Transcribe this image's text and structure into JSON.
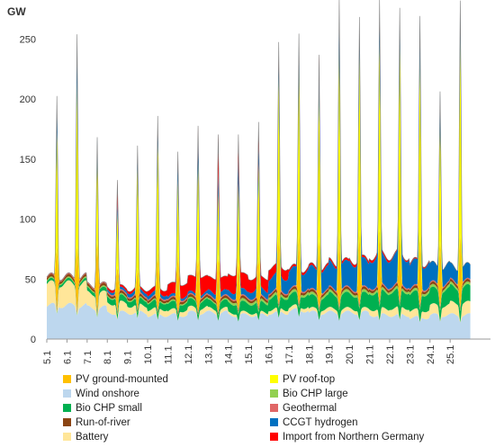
{
  "chart_data": {
    "type": "area",
    "stacked": true,
    "ylabel": "GW",
    "ylim": [
      0,
      260
    ],
    "yticks": [
      0,
      50,
      100,
      150,
      200,
      250
    ],
    "xlim": [
      "5.1",
      "26.1"
    ],
    "x_ticks": [
      "5.1",
      "6.1",
      "7.1",
      "8.1",
      "9.1",
      "10.1",
      "11.1",
      "12.1",
      "13.1",
      "14.1",
      "15.1",
      "16.1",
      "17.1",
      "18.1",
      "19.1",
      "20.1",
      "21.1",
      "22.1",
      "23.1",
      "24.1",
      "25.1"
    ],
    "days": [
      "5.1",
      "6.1",
      "7.1",
      "8.1",
      "9.1",
      "10.1",
      "11.1",
      "12.1",
      "13.1",
      "14.1",
      "15.1",
      "16.1",
      "17.1",
      "18.1",
      "19.1",
      "20.1",
      "21.1",
      "22.1",
      "23.1",
      "24.1",
      "25.1"
    ],
    "series": [
      {
        "name": "PV ground-mounted",
        "color": "#FFC000",
        "daily_peak": [
          52,
          55,
          60,
          38,
          35,
          50,
          50,
          45,
          48,
          40,
          45,
          60,
          60,
          60,
          62,
          62,
          62,
          62,
          60,
          55,
          62
        ]
      },
      {
        "name": "Wind onshore",
        "color": "#BDD7EE",
        "daily_base": [
          28,
          28,
          26,
          22,
          22,
          20,
          20,
          22,
          22,
          20,
          20,
          22,
          24,
          22,
          22,
          22,
          20,
          20,
          18,
          20,
          20
        ]
      },
      {
        "name": "Bio CHP small",
        "color": "#00B050",
        "daily_base": [
          2,
          2,
          3,
          5,
          5,
          6,
          6,
          6,
          6,
          8,
          8,
          10,
          10,
          10,
          12,
          12,
          14,
          14,
          14,
          13,
          13
        ]
      },
      {
        "name": "Run-of-river",
        "color": "#8B4513",
        "daily_base": [
          2,
          2,
          2,
          2,
          2,
          2,
          2,
          2,
          2,
          2,
          2,
          2,
          2,
          2,
          2,
          2,
          2,
          2,
          2,
          2,
          2
        ]
      },
      {
        "name": "Battery",
        "color": "#FFE699",
        "daily_base": [
          18,
          18,
          12,
          8,
          6,
          5,
          4,
          4,
          3,
          2,
          2,
          3,
          3,
          3,
          3,
          3,
          5,
          6,
          6,
          8,
          10
        ]
      },
      {
        "name": "PV roof-top",
        "color": "#FFFF00",
        "daily_peak": [
          95,
          135,
          70,
          45,
          85,
          90,
          60,
          80,
          55,
          65,
          75,
          130,
          140,
          125,
          155,
          150,
          155,
          155,
          150,
          100,
          165
        ]
      },
      {
        "name": "Bio CHP large",
        "color": "#92D050",
        "daily_base": [
          1,
          1,
          1,
          1,
          1,
          1,
          1,
          1,
          1,
          2,
          2,
          2,
          2,
          2,
          2,
          2,
          2,
          2,
          2,
          2,
          2
        ]
      },
      {
        "name": "Geothermal",
        "color": "#E06666",
        "daily_base": [
          1,
          1,
          1,
          1,
          1,
          1,
          1,
          1,
          1,
          1,
          1,
          1,
          1,
          1,
          1,
          1,
          1,
          1,
          1,
          1,
          1
        ]
      },
      {
        "name": "CCGT hydrogen",
        "color": "#0070C0",
        "daily_base": [
          0,
          0,
          0,
          2,
          3,
          3,
          2,
          2,
          4,
          5,
          6,
          12,
          15,
          18,
          20,
          22,
          24,
          24,
          20,
          15,
          12
        ],
        "daily_peak": [
          30,
          40,
          15,
          10,
          15,
          20,
          20,
          25,
          15,
          20,
          15,
          20,
          20,
          15,
          30,
          20,
          25,
          20,
          25,
          20,
          25
        ]
      },
      {
        "name": "Import from Northern Germany",
        "color": "#FF0000",
        "daily_base": [
          0,
          0,
          0,
          2,
          2,
          4,
          10,
          14,
          12,
          14,
          10,
          8,
          2,
          2,
          2,
          2,
          2,
          1,
          1,
          0,
          0
        ],
        "daily_peak": [
          0,
          0,
          0,
          15,
          0,
          0,
          0,
          0,
          25,
          15,
          15,
          2,
          0,
          5,
          2,
          0,
          2,
          0,
          0,
          0,
          0
        ]
      }
    ]
  }
}
